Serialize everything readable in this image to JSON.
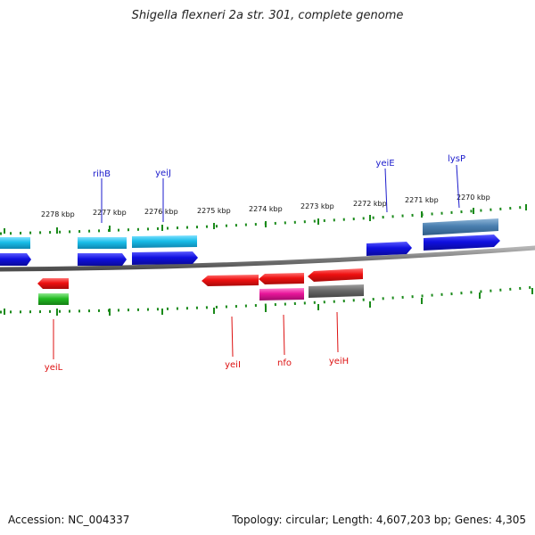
{
  "title": "Shigella flexneri 2a str. 301, complete genome",
  "footer": {
    "accession": "Accession: NC_004337",
    "summary": "Topology: circular; Length: 4,607,203 bp; Genes: 4,305"
  },
  "colors": {
    "backbone": "#7a7a7a",
    "ticks": "#1a8a1a",
    "label_forward": "#1b1bcc",
    "label_reverse": "#dd1111",
    "cds_forward": "#1010e0",
    "gene_forward": "#18bde8",
    "gene_forward_alt": "#4a7fb0",
    "cds_reverse": "#ee1111",
    "gene_reverse_pink": "#e8169a",
    "gene_reverse_gray": "#6a6a6a",
    "gene_reverse_green": "#22bb22"
  },
  "scale": {
    "unit": "kbp",
    "ticks": [
      "2278 kbp",
      "2277 kbp",
      "2276 kbp",
      "2275 kbp",
      "2274 kbp",
      "2273 kbp",
      "2272 kbp",
      "2271 kbp",
      "2270 kbp"
    ]
  },
  "genes": {
    "forward": [
      "rihB",
      "yeiJ",
      "yeiE",
      "lysP"
    ],
    "reverse": [
      "yeiL",
      "yeiI",
      "nfo",
      "yeiH"
    ]
  }
}
